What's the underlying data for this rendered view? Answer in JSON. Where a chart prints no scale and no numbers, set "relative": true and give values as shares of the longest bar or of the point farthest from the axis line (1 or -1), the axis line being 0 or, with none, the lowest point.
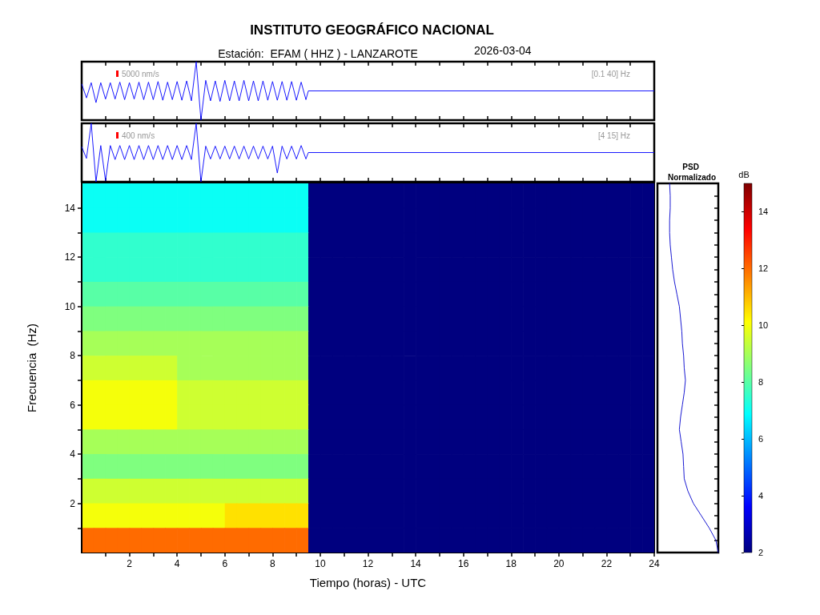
{
  "chart_data": [
    {
      "type": "line",
      "title": "INSTITUTO GEOGRÁFICO NACIONAL",
      "subtitle": "Estación:  EFAM ( HHZ ) - LANZAROTE",
      "annotations": [
        "5000 nm/s",
        "[0.1 40] Hz",
        "2026-03-04"
      ],
      "relative": true,
      "xlim": [
        0,
        24
      ],
      "xticks": [
        1,
        2,
        3,
        4,
        5,
        6,
        7,
        8,
        9,
        10,
        11,
        12,
        13,
        14,
        15,
        16,
        17,
        18,
        19,
        20,
        21,
        22,
        23
      ],
      "tick_labels": false,
      "x": [
        0,
        0.2,
        0.4,
        0.6,
        0.8,
        1,
        1.2,
        1.4,
        1.6,
        1.8,
        2,
        2.2,
        2.4,
        2.6,
        2.8,
        3,
        3.2,
        3.4,
        3.6,
        3.8,
        4,
        4.2,
        4.4,
        4.6,
        4.8,
        5,
        5.2,
        5.4,
        5.6,
        5.8,
        6,
        6.2,
        6.4,
        6.6,
        6.8,
        7,
        7.2,
        7.4,
        7.6,
        7.8,
        8,
        8.2,
        8.4,
        8.6,
        8.8,
        9,
        9.2,
        9.4,
        9.5,
        24
      ],
      "series": [
        {
          "color": "#0000ff",
          "values": [
            0.62,
            0.38,
            0.64,
            0.3,
            0.64,
            0.36,
            0.64,
            0.36,
            0.65,
            0.35,
            0.64,
            0.36,
            0.65,
            0.35,
            0.65,
            0.35,
            0.66,
            0.34,
            0.65,
            0.35,
            0.66,
            0.34,
            0.67,
            0.33,
            1,
            0,
            0.68,
            0.33,
            0.67,
            0.32,
            0.68,
            0.33,
            0.67,
            0.33,
            0.68,
            0.33,
            0.67,
            0.33,
            0.67,
            0.34,
            0.66,
            0.34,
            0.66,
            0.34,
            0.66,
            0.34,
            0.65,
            0.35,
            0.5,
            0.5
          ]
        }
      ]
    },
    {
      "type": "line",
      "annotations": [
        "400 nm/s",
        "[4 15] Hz"
      ],
      "relative": true,
      "xlim": [
        0,
        24
      ],
      "xticks": [
        1,
        2,
        3,
        4,
        5,
        6,
        7,
        8,
        9,
        10,
        11,
        12,
        13,
        14,
        15,
        16,
        17,
        18,
        19,
        20,
        21,
        22,
        23
      ],
      "tick_labels": false,
      "x": [
        0,
        0.2,
        0.4,
        0.6,
        0.8,
        1,
        1.2,
        1.4,
        1.6,
        1.8,
        2,
        2.2,
        2.4,
        2.6,
        2.8,
        3,
        3.2,
        3.4,
        3.6,
        3.8,
        4,
        4.2,
        4.4,
        4.6,
        4.8,
        5,
        5.2,
        5.4,
        5.6,
        5.8,
        6,
        6.2,
        6.4,
        6.6,
        6.8,
        7,
        7.2,
        7.4,
        7.6,
        7.8,
        8,
        8.2,
        8.4,
        8.6,
        8.8,
        9,
        9.2,
        9.4,
        9.5,
        24
      ],
      "series": [
        {
          "color": "#0000ff",
          "values": [
            0.6,
            0.4,
            1,
            0,
            0.62,
            0.02,
            0.62,
            0.38,
            0.62,
            0.38,
            0.62,
            0.38,
            0.62,
            0.38,
            0.62,
            0.38,
            0.62,
            0.38,
            0.62,
            0.38,
            0.62,
            0.38,
            0.62,
            0.38,
            1,
            0,
            0.61,
            0.39,
            0.61,
            0.39,
            0.61,
            0.39,
            0.61,
            0.39,
            0.61,
            0.39,
            0.61,
            0.39,
            0.61,
            0.39,
            0.61,
            0.15,
            0.61,
            0.39,
            0.61,
            0.39,
            0.62,
            0.39,
            0.5,
            0.5
          ]
        }
      ]
    },
    {
      "type": "heatmap",
      "xlabel": "Tiempo (horas) - UTC",
      "ylabel": "Frecuencia  (Hz)",
      "clabel": "dB",
      "xlim": [
        0,
        24
      ],
      "xticks": [
        {
          "value": 1,
          "label": null
        },
        2,
        {
          "value": 3,
          "label": null
        },
        4,
        {
          "value": 5,
          "label": null
        },
        6,
        {
          "value": 7,
          "label": null
        },
        8,
        {
          "value": 9,
          "label": null
        },
        10,
        {
          "value": 11,
          "label": null
        },
        12,
        {
          "value": 13,
          "label": null
        },
        14,
        {
          "value": 15,
          "label": null
        },
        16,
        {
          "value": 17,
          "label": null
        },
        18,
        {
          "value": 19,
          "label": null
        },
        20,
        {
          "value": 21,
          "label": null
        },
        22,
        {
          "value": 23,
          "label": null
        },
        24
      ],
      "ylim": [
        0,
        15
      ],
      "yticks": [
        {
          "value": 1,
          "label": null
        },
        2,
        {
          "value": 3,
          "label": null
        },
        4,
        {
          "value": 5,
          "label": null
        },
        6,
        {
          "value": 7,
          "label": null
        },
        8,
        {
          "value": 9,
          "label": null
        },
        10,
        {
          "value": 11,
          "label": null
        },
        12,
        {
          "value": 13,
          "label": null
        },
        14
      ],
      "clim": [
        2,
        15
      ],
      "cticks": [
        2,
        4,
        6,
        8,
        10,
        12,
        14
      ],
      "x": [
        0.25,
        0.75,
        1.25,
        1.75,
        2.25,
        2.75,
        3.25,
        3.75,
        4.25,
        4.75,
        5.25,
        5.75,
        6.25,
        6.75,
        7.25,
        7.75,
        8.25,
        8.75,
        9.25,
        9.75,
        10.25,
        10.75,
        11.25,
        11.75,
        12.25,
        12.75,
        13.25,
        13.75,
        14.25,
        14.75,
        15.25,
        15.75,
        16.25,
        16.75,
        17.25,
        17.75,
        18.25,
        18.75,
        19.25,
        19.75,
        20.25,
        20.75,
        21.25,
        21.75,
        22.25,
        22.75,
        23.25,
        23.75
      ],
      "cells": [
        [
          7,
          7,
          7,
          7,
          7,
          7,
          7,
          7,
          7,
          7,
          7,
          7,
          7,
          7,
          7,
          7,
          7,
          7,
          7,
          2,
          2,
          2,
          2,
          2,
          2,
          2,
          2,
          2,
          2,
          2,
          2,
          2,
          2,
          2,
          2,
          2,
          2,
          2,
          2,
          2,
          2,
          2,
          2,
          2,
          2,
          2,
          2,
          2
        ],
        [
          7,
          7,
          7,
          7,
          7,
          7,
          7,
          7,
          7,
          7,
          7,
          7,
          7,
          7,
          7,
          7,
          7,
          7,
          7,
          2,
          2,
          2,
          2,
          2,
          2,
          2,
          2,
          2,
          2,
          2,
          2,
          2,
          2,
          2,
          2,
          2,
          2,
          2,
          2,
          2,
          2,
          2,
          2,
          2,
          2,
          2,
          2,
          2
        ],
        [
          7.5,
          7.5,
          7.5,
          7.5,
          7.5,
          7.5,
          7.5,
          7.5,
          7.5,
          7.5,
          7.5,
          7.5,
          7.5,
          7.5,
          7.5,
          7.5,
          7.5,
          7.5,
          7.5,
          2,
          2,
          2,
          2,
          2,
          2,
          2,
          2,
          2,
          2,
          2,
          2,
          2,
          2,
          2,
          2,
          2,
          2,
          2,
          2,
          2,
          2,
          2,
          2,
          2,
          2,
          2,
          2,
          2
        ],
        [
          7.5,
          7.5,
          7.5,
          7.5,
          7.5,
          7.5,
          7.5,
          7.5,
          7.5,
          7.5,
          7.5,
          7.5,
          7.5,
          7.5,
          7.5,
          7.5,
          7.5,
          7.5,
          7.5,
          2,
          2,
          2,
          2,
          2,
          2,
          2,
          2,
          2,
          2,
          2,
          2,
          2,
          2,
          2,
          2,
          2,
          2,
          2,
          2,
          2,
          2,
          2,
          2,
          2,
          2,
          2,
          2,
          2
        ],
        [
          8,
          8,
          8,
          8,
          8,
          8,
          8,
          8,
          8,
          8,
          8,
          8,
          8,
          8,
          8,
          8,
          8,
          8,
          8,
          2,
          2,
          2,
          2,
          2,
          2,
          2,
          2,
          2,
          2,
          2,
          2,
          2,
          2,
          2,
          2,
          2,
          2,
          2,
          2,
          2,
          2,
          2,
          2,
          2,
          2,
          2,
          2,
          2
        ],
        [
          8.5,
          8.5,
          8.5,
          8.5,
          8.5,
          8.5,
          8.5,
          8.5,
          8.5,
          8.5,
          8.5,
          8.5,
          8.5,
          8.5,
          8.5,
          8.5,
          8.5,
          8.5,
          8.5,
          2,
          2,
          2,
          2,
          2,
          2,
          2,
          2,
          2,
          2,
          2,
          2,
          2,
          2,
          2,
          2,
          2,
          2,
          2,
          2,
          2,
          2,
          2,
          2,
          2,
          2,
          2,
          2,
          2
        ],
        [
          9,
          9,
          9,
          9,
          9,
          9,
          9,
          9,
          9,
          9,
          9,
          9,
          9,
          9,
          9,
          9,
          9,
          9,
          9,
          2,
          2,
          2,
          2,
          2,
          2,
          2,
          2,
          2,
          2,
          2,
          2,
          2,
          2,
          2,
          2,
          2,
          2,
          2,
          2,
          2,
          2,
          2,
          2,
          2,
          2,
          2,
          2,
          2
        ],
        [
          9.5,
          9.5,
          9.5,
          9.5,
          9.5,
          9.5,
          9.5,
          9.5,
          9,
          9,
          9,
          9,
          9,
          9,
          9,
          9,
          9,
          9,
          9,
          2,
          2,
          2,
          2,
          2,
          2,
          2,
          2,
          2,
          2,
          2,
          2,
          2,
          2,
          2,
          2,
          2,
          2,
          2,
          2,
          2,
          2,
          2,
          2,
          2,
          2,
          2,
          2,
          2
        ],
        [
          10,
          10,
          10,
          10,
          10,
          10,
          10,
          10,
          9.5,
          9.5,
          9.5,
          9.5,
          9.5,
          9.5,
          9.5,
          9.5,
          9.5,
          9.5,
          9.5,
          2,
          2,
          2,
          2,
          2,
          2,
          2,
          2,
          2,
          2,
          2,
          2,
          2,
          2,
          2,
          2,
          2,
          2,
          2,
          2,
          2,
          2,
          2,
          2,
          2,
          2,
          2,
          2,
          2
        ],
        [
          10,
          10,
          10,
          10,
          10,
          10,
          10,
          10,
          9.5,
          9.5,
          9.5,
          9.5,
          9.5,
          9.5,
          9.5,
          9.5,
          9.5,
          9.5,
          9.5,
          2,
          2,
          2,
          2,
          2,
          2,
          2,
          2,
          2,
          2,
          2,
          2,
          2,
          2,
          2,
          2,
          2,
          2,
          2,
          2,
          2,
          2,
          2,
          2,
          2,
          2,
          2,
          2,
          2
        ],
        [
          9,
          9,
          9,
          9,
          9,
          9,
          9,
          9,
          9,
          9,
          9,
          9,
          9,
          9,
          9,
          9,
          9,
          9,
          9,
          2,
          2,
          2,
          2,
          2,
          2,
          2,
          2,
          2,
          2,
          2,
          2,
          2,
          2,
          2,
          2,
          2,
          2,
          2,
          2,
          2,
          2,
          2,
          2,
          2,
          2,
          2,
          2,
          2
        ],
        [
          8.5,
          8.5,
          8.5,
          8.5,
          8.5,
          8.5,
          8.5,
          8.5,
          8.5,
          8.5,
          8.5,
          8.5,
          8.5,
          8.5,
          8.5,
          8.5,
          8.5,
          8.5,
          8.5,
          2,
          2,
          2,
          2,
          2,
          2,
          2,
          2,
          2,
          2,
          2,
          2,
          2,
          2,
          2,
          2,
          2,
          2,
          2,
          2,
          2,
          2,
          2,
          2,
          2,
          2,
          2,
          2,
          2
        ],
        [
          9.5,
          9.5,
          9.5,
          9.5,
          9.5,
          9.5,
          9.5,
          9.5,
          9.5,
          9.5,
          9.5,
          9.5,
          9.5,
          9.5,
          9.5,
          9.5,
          9.5,
          9.5,
          9.5,
          2,
          2,
          2,
          2,
          2,
          2,
          2,
          2,
          2,
          2,
          2,
          2,
          2,
          2,
          2,
          2,
          2,
          2,
          2,
          2,
          2,
          2,
          2,
          2,
          2,
          2,
          2,
          2,
          2
        ],
        [
          10,
          10,
          10,
          10,
          10,
          10,
          10,
          10,
          10,
          10,
          10,
          10,
          10.5,
          10.5,
          10.5,
          10.5,
          10.5,
          10.5,
          10.5,
          2,
          2,
          2,
          2,
          2,
          2,
          2,
          2,
          2,
          2,
          2,
          2,
          2,
          2,
          2,
          2,
          2,
          2,
          2,
          2,
          2,
          2,
          2,
          2,
          2,
          2,
          2,
          2,
          2
        ],
        [
          12,
          12,
          12,
          12,
          12,
          12,
          12,
          12,
          12,
          12,
          12,
          12,
          12,
          12,
          12,
          12,
          12,
          12,
          12,
          2,
          2,
          2,
          2,
          2,
          2,
          2,
          2,
          2,
          2,
          2,
          2,
          2,
          2,
          2,
          2,
          2,
          2,
          2,
          2,
          2,
          2,
          2,
          2,
          2,
          2,
          2,
          2,
          2
        ]
      ]
    },
    {
      "type": "line",
      "title": "PSD Normalizado",
      "orientation": "horizontal",
      "relative": true,
      "tick_labels": false,
      "ylim": [
        0,
        15
      ],
      "yticks": [
        {
          "value": 0.5,
          "label": null
        },
        {
          "value": 1,
          "label": null
        },
        {
          "value": 1.5,
          "label": null
        },
        {
          "value": 2,
          "label": null
        },
        {
          "value": 2.5,
          "label": null
        },
        {
          "value": 3,
          "label": null
        },
        {
          "value": 3.5,
          "label": null
        },
        {
          "value": 4,
          "label": null
        },
        {
          "value": 4.5,
          "label": null
        },
        {
          "value": 5,
          "label": null
        },
        {
          "value": 5.5,
          "label": null
        },
        {
          "value": 6,
          "label": null
        },
        {
          "value": 6.5,
          "label": null
        },
        {
          "value": 7,
          "label": null
        },
        {
          "value": 7.5,
          "label": null
        },
        {
          "value": 8,
          "label": null
        },
        {
          "value": 8.5,
          "label": null
        },
        {
          "value": 9,
          "label": null
        },
        {
          "value": 9.5,
          "label": null
        },
        {
          "value": 10,
          "label": null
        },
        {
          "value": 10.5,
          "label": null
        },
        {
          "value": 11,
          "label": null
        },
        {
          "value": 11.5,
          "label": null
        },
        {
          "value": 12,
          "label": null
        },
        {
          "value": 12.5,
          "label": null
        },
        {
          "value": 13,
          "label": null
        },
        {
          "value": 13.5,
          "label": null
        },
        {
          "value": 14,
          "label": null
        },
        {
          "value": 14.5,
          "label": null
        }
      ],
      "x": [
        15,
        14.5,
        14,
        13.5,
        13,
        12.5,
        12,
        11.5,
        11,
        10.5,
        10,
        9.5,
        9,
        8.5,
        8,
        7.5,
        7,
        6.5,
        6,
        5.5,
        5,
        4.5,
        4,
        3.5,
        3,
        2.5,
        2,
        1.5,
        1,
        0.5,
        0
      ],
      "series": [
        {
          "color": "#0000cd",
          "values": [
            0.2,
            0.21,
            0.21,
            0.2,
            0.2,
            0.21,
            0.23,
            0.25,
            0.28,
            0.32,
            0.36,
            0.38,
            0.4,
            0.41,
            0.43,
            0.44,
            0.46,
            0.44,
            0.41,
            0.38,
            0.36,
            0.39,
            0.42,
            0.43,
            0.44,
            0.5,
            0.59,
            0.72,
            0.85,
            0.96,
            1
          ]
        }
      ]
    }
  ]
}
